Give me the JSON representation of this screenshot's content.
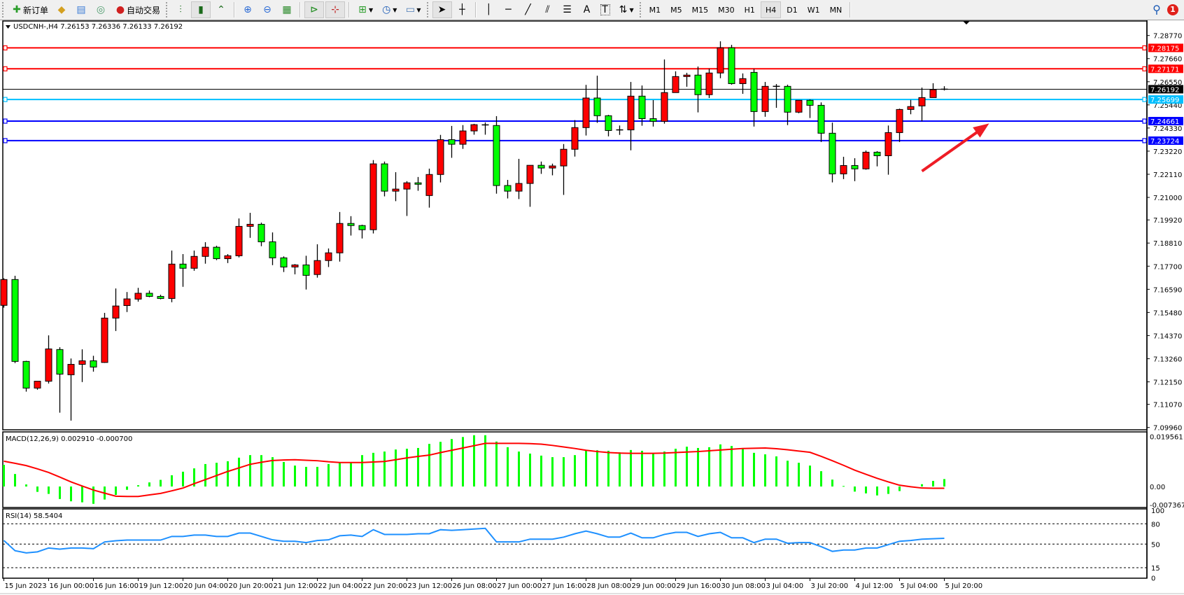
{
  "toolbar": {
    "new_order_label": "新订单",
    "auto_trading_label": "自动交易",
    "icons": [
      "new-order-icon",
      "market-watch-icon",
      "navigator-icon",
      "signals-icon",
      "auto-trading-icon",
      "bar-chart-icon",
      "candlestick-icon",
      "line-chart-icon",
      "zoom-in-icon",
      "zoom-out-icon",
      "tile-windows-icon",
      "chart-shift-icon",
      "autoscroll-icon",
      "new-chart-icon",
      "periods-icon",
      "templates-icon",
      "cursor-icon",
      "crosshair-icon",
      "vertical-line-icon",
      "horizontal-line-icon",
      "trendline-icon",
      "fibonacci-icon",
      "channel-icon",
      "text-icon",
      "text-label-icon",
      "arrows-icon"
    ],
    "text_tool_label": "A",
    "label_tool_label": "T",
    "timeframes": [
      "M1",
      "M5",
      "M15",
      "M30",
      "H1",
      "H4",
      "D1",
      "W1",
      "MN"
    ],
    "active_timeframe": "H4",
    "notification_count": "1"
  },
  "chart": {
    "title": "USDCNH-,H4  7.26153 7.26336 7.26133 7.26192",
    "symbol": "USDCNH-",
    "timeframe": "H4",
    "colors": {
      "bull": "#ff0000",
      "bear": "#00ff00",
      "macd_hist": "#00ff00",
      "macd_signal": "#ff0000",
      "rsi": "#1e90ff",
      "arrow": "#ee1c25"
    },
    "price_axis": [
      "7.28770",
      "7.27660",
      "7.26550",
      "7.25440",
      "7.24330",
      "7.23220",
      "7.22110",
      "7.21000",
      "7.19920",
      "7.18810",
      "7.17700",
      "7.16590",
      "7.15480",
      "7.14370",
      "7.13260",
      "7.12150",
      "7.11070",
      "7.09960"
    ],
    "price_range": [
      7.0996,
      7.2877
    ],
    "levels": [
      {
        "price": 7.28175,
        "label": "7.28175",
        "color": "#ff0000"
      },
      {
        "price": 7.27171,
        "label": "7.27171",
        "color": "#ff0000"
      },
      {
        "price": 7.26192,
        "label": "7.26192",
        "color": "#000000"
      },
      {
        "price": 7.25699,
        "label": "7.25699",
        "color": "#00bfff"
      },
      {
        "price": 7.24661,
        "label": "7.24661",
        "color": "#0000ff"
      },
      {
        "price": 7.23724,
        "label": "7.23724",
        "color": "#0000ff"
      }
    ],
    "annotation": {
      "type": "arrow",
      "from": {
        "bar": 82,
        "price": 7.2226
      },
      "to": {
        "bar": 88,
        "price": 7.2455
      }
    },
    "time_axis": [
      "15 Jun 2023",
      "16 Jun 00:00",
      "16 Jun 16:00",
      "19 Jun 12:00",
      "20 Jun 04:00",
      "20 Jun 20:00",
      "21 Jun 12:00",
      "22 Jun 04:00",
      "22 Jun 20:00",
      "23 Jun 12:00",
      "26 Jun 08:00",
      "27 Jun 00:00",
      "27 Jun 16:00",
      "28 Jun 08:00",
      "29 Jun 00:00",
      "29 Jun 16:00",
      "30 Jun 08:00",
      "3 Jul 04:00",
      "3 Jul 20:00",
      "4 Jul 12:00",
      "5 Jul 04:00",
      "5 Jul 20:00"
    ]
  },
  "chart_data": {
    "type": "candlestick",
    "ohlc_order": [
      "open",
      "high",
      "low",
      "close"
    ],
    "ohlc": [
      [
        7.1582,
        7.1712,
        7.1571,
        7.1706
      ],
      [
        7.1706,
        7.1724,
        7.1305,
        7.1313
      ],
      [
        7.1313,
        7.1316,
        7.1168,
        7.1185
      ],
      [
        7.1185,
        7.1218,
        7.1177,
        7.1218
      ],
      [
        7.1218,
        7.1438,
        7.1207,
        7.1373
      ],
      [
        7.137,
        7.1381,
        7.1067,
        7.1252
      ],
      [
        7.1249,
        7.1327,
        7.1029,
        7.1299
      ],
      [
        7.1299,
        7.1371,
        7.1214,
        7.1316
      ],
      [
        7.1316,
        7.134,
        7.1264,
        7.1286
      ],
      [
        7.1308,
        7.1546,
        7.1306,
        7.1521
      ],
      [
        7.1521,
        7.1663,
        7.1459,
        7.1579
      ],
      [
        7.1581,
        7.1646,
        7.155,
        7.1613
      ],
      [
        7.1612,
        7.1666,
        7.16,
        7.164
      ],
      [
        7.164,
        7.1653,
        7.1621,
        7.1625
      ],
      [
        7.1625,
        7.1633,
        7.1611,
        7.1615
      ],
      [
        7.1615,
        7.1845,
        7.1597,
        7.178
      ],
      [
        7.178,
        7.1828,
        7.1671,
        7.176
      ],
      [
        7.176,
        7.1845,
        7.1748,
        7.1817
      ],
      [
        7.1817,
        7.1885,
        7.1782,
        7.1861
      ],
      [
        7.1861,
        7.1868,
        7.1799,
        7.1806
      ],
      [
        7.1806,
        7.1828,
        7.1785,
        7.182
      ],
      [
        7.182,
        7.1999,
        7.1812,
        7.1961
      ],
      [
        7.1961,
        7.2026,
        7.1906,
        7.1971
      ],
      [
        7.1971,
        7.1979,
        7.1866,
        7.1887
      ],
      [
        7.1887,
        7.1932,
        7.1775,
        7.181
      ],
      [
        7.181,
        7.1817,
        7.1742,
        7.1766
      ],
      [
        7.1766,
        7.178,
        7.1731,
        7.1776
      ],
      [
        7.1776,
        7.182,
        7.1658,
        7.1726
      ],
      [
        7.173,
        7.1875,
        7.1715,
        7.1797
      ],
      [
        7.1797,
        7.1855,
        7.1766,
        7.1834
      ],
      [
        7.1834,
        7.203,
        7.1792,
        7.1975
      ],
      [
        7.1975,
        7.201,
        7.1917,
        7.1965
      ],
      [
        7.1965,
        7.1969,
        7.1903,
        7.1945
      ],
      [
        7.1945,
        7.2279,
        7.1927,
        7.2261
      ],
      [
        7.2261,
        7.2272,
        7.2105,
        7.213
      ],
      [
        7.213,
        7.2221,
        7.2082,
        7.214
      ],
      [
        7.214,
        7.2178,
        7.2011,
        7.217
      ],
      [
        7.217,
        7.2198,
        7.2132,
        7.2163
      ],
      [
        7.2109,
        7.2238,
        7.2051,
        7.221
      ],
      [
        7.221,
        7.24,
        7.2172,
        7.2377
      ],
      [
        7.2377,
        7.2443,
        7.229,
        7.2355
      ],
      [
        7.2355,
        7.2447,
        7.2333,
        7.2419
      ],
      [
        7.2419,
        7.2453,
        7.2401,
        7.2449
      ],
      [
        7.2445,
        7.246,
        7.2401,
        7.2448
      ],
      [
        7.2445,
        7.249,
        7.2118,
        7.2157
      ],
      [
        7.2157,
        7.2184,
        7.2095,
        7.213
      ],
      [
        7.213,
        7.2285,
        7.2092,
        7.2167
      ],
      [
        7.2167,
        7.2254,
        7.2055,
        7.2254
      ],
      [
        7.2254,
        7.2272,
        7.2213,
        7.2241
      ],
      [
        7.2241,
        7.2262,
        7.2206,
        7.2251
      ],
      [
        7.2251,
        7.2356,
        7.2112,
        7.2331
      ],
      [
        7.2331,
        7.2471,
        7.2296,
        7.2435
      ],
      [
        7.2435,
        7.264,
        7.2397,
        7.2577
      ],
      [
        7.2577,
        7.2684,
        7.2458,
        7.2492
      ],
      [
        7.2492,
        7.2496,
        7.2393,
        7.2421
      ],
      [
        7.2424,
        7.2445,
        7.24,
        7.2424
      ],
      [
        7.2424,
        7.2654,
        7.2326,
        7.2586
      ],
      [
        7.2586,
        7.2637,
        7.2444,
        7.2478
      ],
      [
        7.2478,
        7.2567,
        7.244,
        7.2465
      ],
      [
        7.2465,
        7.2762,
        7.2454,
        7.2603
      ],
      [
        7.2603,
        7.2705,
        7.2603,
        7.268
      ],
      [
        7.268,
        7.2698,
        7.2631,
        7.2687
      ],
      [
        7.2687,
        7.2728,
        7.2508,
        7.2593
      ],
      [
        7.2593,
        7.2718,
        7.2577,
        7.2697
      ],
      [
        7.2697,
        7.2849,
        7.2672,
        7.2818
      ],
      [
        7.2818,
        7.2832,
        7.2641,
        7.2646
      ],
      [
        7.2646,
        7.2695,
        7.2597,
        7.267
      ],
      [
        7.27,
        7.2717,
        7.244,
        7.2512
      ],
      [
        7.2512,
        7.2654,
        7.2487,
        7.2633
      ],
      [
        7.2633,
        7.2644,
        7.253,
        7.2633
      ],
      [
        7.2633,
        7.2641,
        7.2447,
        7.2509
      ],
      [
        7.2509,
        7.2566,
        7.2504,
        7.2566
      ],
      [
        7.2566,
        7.257,
        7.2481,
        7.2542
      ],
      [
        7.2542,
        7.2556,
        7.2366,
        7.2408
      ],
      [
        7.2408,
        7.2459,
        7.2172,
        7.2213
      ],
      [
        7.2213,
        7.2295,
        7.2188,
        7.2253
      ],
      [
        7.2253,
        7.2288,
        7.2178,
        7.2237
      ],
      [
        7.2237,
        7.2325,
        7.2233,
        7.2317
      ],
      [
        7.2317,
        7.2322,
        7.2249,
        7.23
      ],
      [
        7.23,
        7.2445,
        7.2209,
        7.2411
      ],
      [
        7.2411,
        7.2526,
        7.2366,
        7.2522
      ],
      [
        7.2522,
        7.2568,
        7.2499,
        7.2536
      ],
      [
        7.2539,
        7.2627,
        7.2465,
        7.2579
      ],
      [
        7.2579,
        7.2648,
        7.2579,
        7.2617
      ],
      [
        7.26153,
        7.26336,
        7.26133,
        7.26192
      ]
    ],
    "macd": {
      "label": "MACD(12,26,9) 0.002910 -0.000700",
      "axis": [
        "0.019561",
        "0.00",
        "-0.007367"
      ],
      "range": [
        -0.007367,
        0.019561
      ],
      "histogram": [
        0.0085,
        0.0049,
        0.0008,
        -0.0021,
        -0.0029,
        -0.0049,
        -0.0058,
        -0.0062,
        -0.0068,
        -0.0051,
        -0.0033,
        -0.0013,
        0.0005,
        0.0016,
        0.0026,
        0.0044,
        0.0058,
        0.0071,
        0.0088,
        0.0093,
        0.0099,
        0.0113,
        0.0123,
        0.0123,
        0.0115,
        0.0096,
        0.0082,
        0.0077,
        0.0077,
        0.0088,
        0.0093,
        0.0093,
        0.0123,
        0.0132,
        0.0137,
        0.0145,
        0.0148,
        0.0151,
        0.0167,
        0.0175,
        0.0186,
        0.0194,
        0.0201,
        0.0201,
        0.0176,
        0.0154,
        0.0137,
        0.0129,
        0.0121,
        0.0115,
        0.0115,
        0.0123,
        0.014,
        0.0142,
        0.014,
        0.0134,
        0.0143,
        0.014,
        0.0132,
        0.0137,
        0.0148,
        0.0156,
        0.0151,
        0.0154,
        0.0165,
        0.0159,
        0.0151,
        0.0132,
        0.0126,
        0.0118,
        0.0101,
        0.0093,
        0.0082,
        0.006,
        0.0027,
        0.0002,
        -0.002,
        -0.0027,
        -0.0035,
        -0.0029,
        -0.0018,
        0.0001,
        0.0009,
        0.0022,
        0.00291
      ],
      "signal": [
        0.0099,
        0.0091,
        0.0082,
        0.0069,
        0.0055,
        0.0037,
        0.0018,
        0.0002,
        -0.0014,
        -0.0026,
        -0.0038,
        -0.0039,
        -0.0039,
        -0.0033,
        -0.0027,
        -0.0017,
        -0.0006,
        0.0011,
        0.0027,
        0.0043,
        0.0059,
        0.0073,
        0.0087,
        0.0095,
        0.0102,
        0.0104,
        0.0105,
        0.0103,
        0.0101,
        0.0097,
        0.0094,
        0.0094,
        0.0094,
        0.0096,
        0.0098,
        0.0105,
        0.0112,
        0.0118,
        0.0123,
        0.0133,
        0.0142,
        0.0151,
        0.016,
        0.0169,
        0.0169,
        0.0169,
        0.0169,
        0.0168,
        0.0166,
        0.0161,
        0.0155,
        0.0149,
        0.0142,
        0.0137,
        0.0133,
        0.0131,
        0.013,
        0.013,
        0.013,
        0.0131,
        0.0133,
        0.0135,
        0.0137,
        0.014,
        0.0143,
        0.0146,
        0.0149,
        0.015,
        0.0151,
        0.0148,
        0.0144,
        0.0139,
        0.0134,
        0.0118,
        0.0101,
        0.0083,
        0.0064,
        0.0048,
        0.0032,
        0.0018,
        0.0005,
        -0.0001,
        -0.0006,
        -0.0007,
        -0.0007
      ]
    },
    "rsi": {
      "label": "RSI(14) 58.5404",
      "axis": [
        "100",
        "80",
        "50",
        "15",
        "0"
      ],
      "levels": [
        80,
        50,
        15
      ],
      "range": [
        0,
        100
      ],
      "values": [
        55.3,
        40.2,
        36.9,
        38.5,
        44.2,
        42.5,
        44.2,
        44.2,
        43.2,
        53.2,
        54.9,
        55.9,
        55.9,
        55.9,
        55.9,
        61.3,
        61.3,
        63.3,
        63.3,
        61.3,
        61.3,
        66.3,
        66.3,
        61.3,
        56.3,
        54.2,
        54.2,
        52.2,
        55.3,
        56.3,
        62.3,
        63.3,
        61.3,
        71.3,
        64.3,
        64.3,
        64.3,
        65.3,
        65.3,
        71.3,
        70.3,
        71.3,
        72.3,
        73.3,
        53.2,
        53.2,
        53.2,
        57.3,
        57.3,
        57.3,
        60.3,
        65.3,
        69.3,
        65.3,
        60.3,
        60.3,
        66.3,
        59.3,
        59.3,
        64.3,
        67.3,
        67.3,
        61.3,
        65.3,
        67.3,
        59.3,
        59.3,
        52.2,
        57.3,
        57.3,
        51.2,
        52.2,
        52.2,
        46.2,
        39.2,
        41.2,
        41.2,
        44.2,
        44.2,
        49.2,
        54.2,
        55.3,
        57.3,
        57.9,
        58.54
      ]
    }
  }
}
